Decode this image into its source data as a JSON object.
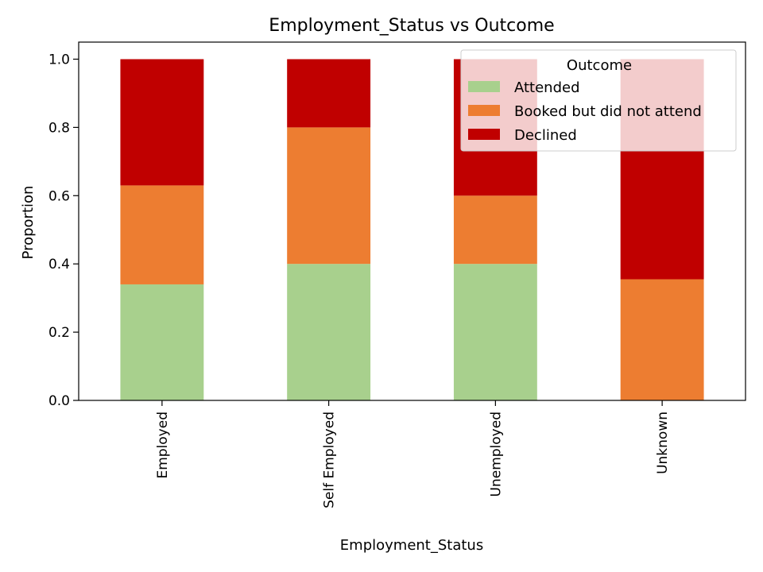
{
  "chart_data": {
    "type": "bar",
    "stacked": true,
    "title": "Employment_Status vs Outcome",
    "xlabel": "Employment_Status",
    "ylabel": "Proportion",
    "ylim": [
      0,
      1.05
    ],
    "yticks": [
      "0.0",
      "0.2",
      "0.4",
      "0.6",
      "0.8",
      "1.0"
    ],
    "ytick_values": [
      0,
      0.2,
      0.4,
      0.6,
      0.8,
      1.0
    ],
    "categories": [
      "Employed",
      "Self Employed",
      "Unemployed",
      "Unknown"
    ],
    "legend": {
      "title": "Outcome",
      "placement": "top-right"
    },
    "grid": false,
    "series": [
      {
        "name": "Attended",
        "color": "#a8d08d",
        "values": [
          0.34,
          0.4,
          0.4,
          0.0
        ]
      },
      {
        "name": "Booked but did not attend",
        "color": "#ed7d31",
        "values": [
          0.29,
          0.4,
          0.2,
          0.355
        ]
      },
      {
        "name": "Declined",
        "color": "#c00000",
        "values": [
          0.37,
          0.2,
          0.4,
          0.645
        ]
      }
    ]
  }
}
